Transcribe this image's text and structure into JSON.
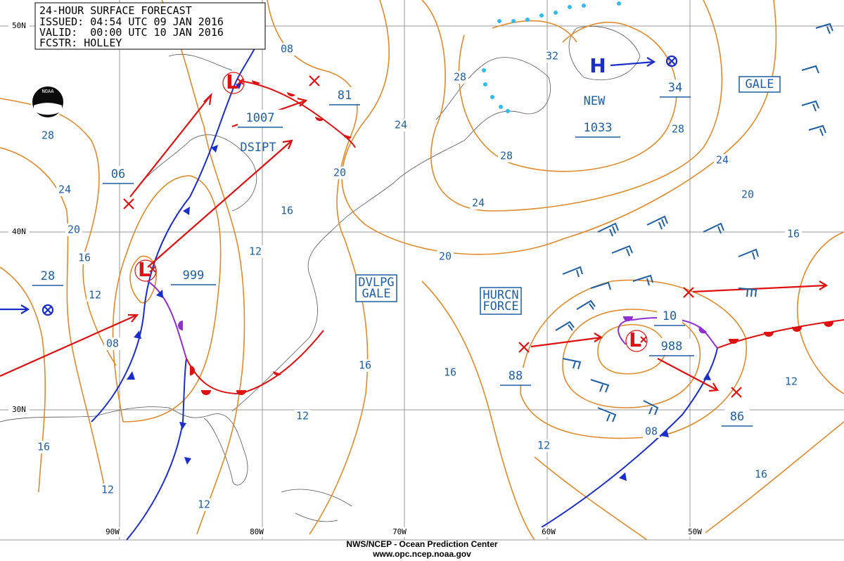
{
  "header": {
    "title": "24-HOUR SURFACE FORECAST",
    "issued": "ISSUED: 04:54 UTC 09 JAN 2016",
    "valid": "VALID:  00:00 UTC 10 JAN 2016",
    "forecaster": "FCSTR: HOLLEY"
  },
  "logo": "NOAA",
  "latitudes": [
    "50N",
    "40N",
    "30N"
  ],
  "longitudes": [
    "90W",
    "80W",
    "70W",
    "60W",
    "50W"
  ],
  "systems": [
    {
      "symbol": "L",
      "pressure": "1007",
      "note": "DSIPT"
    },
    {
      "symbol": "L",
      "pressure": "999"
    },
    {
      "symbol": "L",
      "pressure": "988"
    },
    {
      "symbol": "H",
      "pressure": "1033",
      "note": "NEW"
    }
  ],
  "past_positions": [
    "06",
    "81",
    "28",
    "88",
    "86",
    "10",
    "34"
  ],
  "warnings": [
    [
      "GALE"
    ],
    [
      "DVLPG",
      "GALE"
    ],
    [
      "HURCN",
      "FORCE"
    ]
  ],
  "isobar_labels": [
    "08",
    "28",
    "24",
    "20",
    "16",
    "12",
    "08",
    "12",
    "16",
    "12",
    "20",
    "24",
    "28",
    "32",
    "28",
    "24",
    "20",
    "16",
    "16",
    "12",
    "08",
    "12",
    "16",
    "16",
    "20",
    "24",
    "28",
    "16",
    "12",
    "12"
  ],
  "footer": {
    "agency": "NWS/NCEP - Ocean Prediction Center",
    "url": "www.opc.ncep.noaa.gov"
  }
}
